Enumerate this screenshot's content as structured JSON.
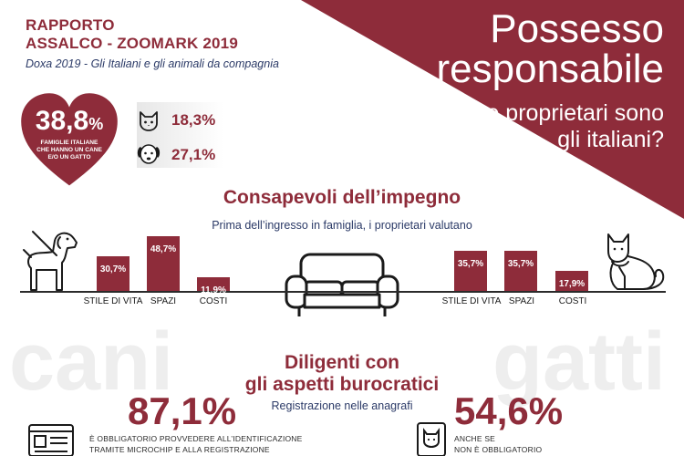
{
  "colors": {
    "accent": "#8e2c3a",
    "navy": "#2b3a67",
    "text_dark": "#1a1a1a"
  },
  "header": {
    "report_line1": "RAPPORTO",
    "report_line2": "ASSALCO - ZOOMARK 2019",
    "subtitle": "Doxa 2019 - Gli Italiani e gli animali da compagnia"
  },
  "hero": {
    "title_line1": "Possesso",
    "title_line2": "responsabile",
    "sub_line1": "Che proprietari sono",
    "sub_line2": "gli italiani?"
  },
  "summary": {
    "heart_value": "38,8",
    "heart_unit": "%",
    "heart_caption_line1": "FAMIGLIE ITALIANE",
    "heart_caption_line2": "CHE HANNO UN CANE",
    "heart_caption_line3": "E/O UN GATTO",
    "cat_pct": "18,3%",
    "dog_pct": "27,1%",
    "cat_icon": "cat-face-icon",
    "dog_icon": "dog-face-icon"
  },
  "section1": {
    "title": "Consapevoli dell’impegno",
    "subtitle": "Prima dell’ingresso in famiglia, i proprietari valutano",
    "icon_left": "dog-icon",
    "icon_center": "sofa-icon",
    "icon_right": "cat-icon"
  },
  "chart_data": [
    {
      "type": "bar",
      "group": "cani",
      "categories": [
        "STILE DI VITA",
        "SPAZI",
        "COSTI"
      ],
      "values": [
        30.7,
        48.7,
        11.9
      ],
      "labels": [
        "30,7%",
        "48,7%",
        "11,9%"
      ],
      "ylim": [
        0,
        50
      ]
    },
    {
      "type": "bar",
      "group": "gatti",
      "categories": [
        "STILE DI VITA",
        "SPAZI",
        "COSTI"
      ],
      "values": [
        35.7,
        35.7,
        17.9
      ],
      "labels": [
        "35,7%",
        "35,7%",
        "17,9%"
      ],
      "ylim": [
        0,
        50
      ]
    }
  ],
  "background_words": {
    "left": "cani",
    "right": "gatti"
  },
  "section2": {
    "title_line1": "Diligenti con",
    "title_line2": "gli aspetti burocratici",
    "subtitle": "Registrazione nelle anagrafi",
    "dogs_pct": "87,1%",
    "cats_pct": "54,6%",
    "dogs_note_line1": "È OBBLIGATORIO PROVVEDERE ALL’IDENTIFICAZIONE",
    "dogs_note_line2": "TRAMITE MICROCHIP E ALLA REGISTRAZIONE",
    "cats_note_line1": "ANCHE SE",
    "cats_note_line2": "NON È OBBLIGATORIO",
    "dogs_doc_icon": "registry-document-icon",
    "cats_doc_icon": "id-card-cat-icon"
  }
}
